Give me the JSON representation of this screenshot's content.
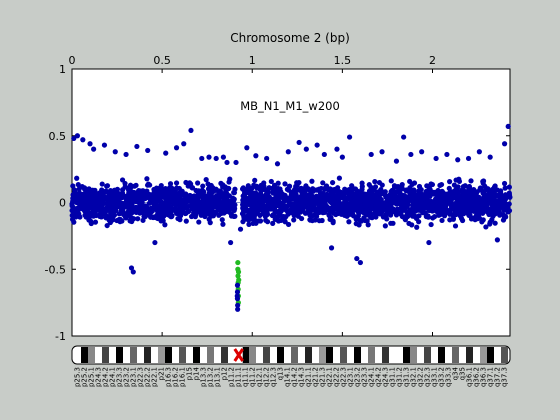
{
  "chart_data": {
    "type": "scatter",
    "title": "Chromosome 2 (bp)",
    "annotation": "MB_N1_M1_w200",
    "xlabel": "Chromosome 2 (bp)",
    "ylabel": "",
    "xlim": [
      0,
      2.43
    ],
    "ylim": [
      -1,
      1
    ],
    "x_ticks": [
      0,
      0.5,
      1,
      1.5,
      2
    ],
    "x_tick_labels": [
      "0",
      "0.5",
      "1",
      "1.5",
      "2"
    ],
    "y_ticks": [
      1,
      0.5,
      0,
      -0.5,
      -1
    ],
    "y_tick_labels": [
      "1",
      "0.5",
      "0",
      "-0.5",
      "-1"
    ],
    "x_axis_position": "top",
    "grid": false,
    "legend": "none",
    "baseline_y": 0,
    "colors": {
      "background": "#c8ccc8",
      "plot_area": "#ffffff",
      "points": "#0000aa",
      "highlight": "#22bb22",
      "baseline": "#8899cc",
      "centromere": "#dd0000"
    },
    "series": [
      {
        "name": "",
        "color": "#0000aa",
        "points": [
          [
            0.01,
            0.48
          ],
          [
            0.03,
            0.5
          ],
          [
            0.06,
            0.47
          ],
          [
            0.1,
            0.44
          ],
          [
            0.12,
            0.4
          ],
          [
            0.18,
            0.43
          ],
          [
            0.24,
            0.38
          ],
          [
            0.3,
            0.36
          ],
          [
            0.33,
            -0.49
          ],
          [
            0.34,
            -0.52
          ],
          [
            0.36,
            0.42
          ],
          [
            0.42,
            0.39
          ],
          [
            0.46,
            -0.3
          ],
          [
            0.52,
            0.37
          ],
          [
            0.58,
            0.41
          ],
          [
            0.62,
            0.44
          ],
          [
            0.66,
            0.54
          ],
          [
            0.72,
            0.33
          ],
          [
            0.76,
            0.34
          ],
          [
            0.8,
            0.33
          ],
          [
            0.84,
            0.34
          ],
          [
            0.86,
            0.3
          ],
          [
            0.88,
            -0.3
          ],
          [
            0.91,
            0.3
          ],
          [
            0.935,
            -0.2
          ],
          [
            0.97,
            0.41
          ],
          [
            1.02,
            0.35
          ],
          [
            1.08,
            0.33
          ],
          [
            1.14,
            0.29
          ],
          [
            1.2,
            0.38
          ],
          [
            1.26,
            0.45
          ],
          [
            1.3,
            0.4
          ],
          [
            1.36,
            0.43
          ],
          [
            1.4,
            0.36
          ],
          [
            1.44,
            -0.34
          ],
          [
            1.47,
            0.4
          ],
          [
            1.5,
            0.34
          ],
          [
            1.54,
            0.49
          ],
          [
            1.58,
            -0.42
          ],
          [
            1.6,
            -0.45
          ],
          [
            1.66,
            0.36
          ],
          [
            1.72,
            0.38
          ],
          [
            1.8,
            0.31
          ],
          [
            1.84,
            0.49
          ],
          [
            1.88,
            0.36
          ],
          [
            1.94,
            0.38
          ],
          [
            1.98,
            -0.3
          ],
          [
            2.02,
            0.33
          ],
          [
            2.08,
            0.36
          ],
          [
            2.14,
            0.32
          ],
          [
            2.2,
            0.33
          ],
          [
            2.26,
            0.38
          ],
          [
            2.32,
            0.34
          ],
          [
            2.36,
            -0.28
          ],
          [
            2.4,
            0.44
          ],
          [
            2.42,
            0.57
          ]
        ],
        "band": {
          "center": 0.0,
          "spread": 0.2
        }
      },
      {
        "name": "",
        "color": "#22bb22",
        "points": [
          [
            0.92,
            -0.45
          ],
          [
            0.92,
            -0.5
          ],
          [
            0.921,
            -0.55
          ],
          [
            0.922,
            -0.6
          ],
          [
            0.922,
            -0.65
          ],
          [
            0.923,
            -0.7
          ],
          [
            0.923,
            -0.75
          ],
          [
            0.924,
            -0.52
          ],
          [
            0.925,
            -0.58
          ]
        ]
      },
      {
        "name": "",
        "color": "#0000aa",
        "points": [
          [
            0.918,
            -0.62
          ],
          [
            0.918,
            -0.67
          ],
          [
            0.918,
            -0.72
          ],
          [
            0.919,
            -0.77
          ],
          [
            0.919,
            -0.8
          ],
          [
            0.917,
            -0.7
          ]
        ]
      }
    ]
  },
  "ideogram": {
    "band_labels": [
      "p25.3",
      "p25.2",
      "p25.1",
      "p24.3",
      "p24.2",
      "p24.1",
      "p23.3",
      "p23.2",
      "p23.1",
      "p22.3",
      "p22.2",
      "p22.1",
      "p21",
      "p16.3",
      "p16.2",
      "p16.1",
      "p15",
      "p14",
      "p13.3",
      "p13.2",
      "p13.1",
      "p12",
      "p11.2",
      "p11.1",
      "q11.1",
      "q11.2",
      "q12.1",
      "q12.2",
      "q12.3",
      "q13",
      "q14.1",
      "q14.2",
      "q14.3",
      "q21.1",
      "q21.2",
      "q21.3",
      "q22.1",
      "q22.2",
      "q22.3",
      "q23.1",
      "q23.2",
      "q23.3",
      "q24.1",
      "q24.2",
      "q24.3",
      "q31.1",
      "q31.2",
      "q31.3",
      "q32.1",
      "q32.2",
      "q32.3",
      "q33.1",
      "q33.2",
      "q33.3",
      "q34",
      "q35",
      "q36.1",
      "q36.2",
      "q36.3",
      "q37.1",
      "q37.2",
      "q37.3"
    ]
  }
}
